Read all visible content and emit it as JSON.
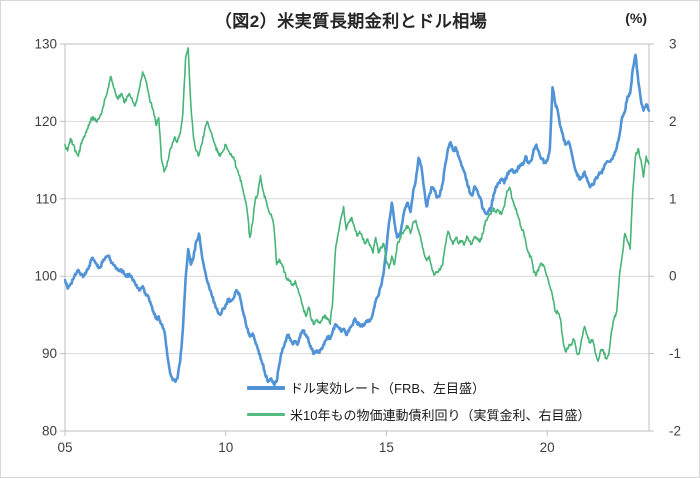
{
  "chart_data": {
    "type": "line",
    "title": "（図2）米実質長期金利とドル相場",
    "right_axis_unit_label": "(%)",
    "grid_on": true,
    "legend_position": "bottom-center-inside",
    "x_axis": {
      "tick_labels": [
        "05",
        "10",
        "15",
        "20"
      ],
      "tick_years": [
        2005,
        2010,
        2015,
        2020
      ],
      "range_years": [
        2005.0,
        2023.17
      ]
    },
    "left_axis": {
      "min": 80,
      "max": 130,
      "ticks": [
        130,
        120,
        110,
        100,
        90,
        80
      ],
      "tick_labels": [
        "130",
        "120",
        "110",
        "100",
        "90",
        "80"
      ]
    },
    "right_axis": {
      "min": -2,
      "max": 3,
      "ticks": [
        3,
        2,
        1,
        0,
        -1,
        -2
      ],
      "tick_labels": [
        "3",
        "2",
        "1",
        "0",
        "-1",
        "-2"
      ]
    },
    "grid_color": "#d9d9d9",
    "axis_color": "#bfbfbf",
    "label_color": "#404040",
    "series": [
      {
        "name": "ドル実効レート（FRB、左目盛）",
        "axis": "left",
        "color": "#5093d6",
        "line_width": 2.6,
        "start_year": 2005.0,
        "points_per_year": 12,
        "values": [
          99.5,
          98.4,
          99.0,
          99.6,
          100.2,
          100.8,
          100.3,
          100.0,
          100.6,
          101.3,
          102.3,
          102.0,
          101.3,
          101.1,
          101.8,
          102.3,
          102.6,
          102.1,
          101.5,
          101.0,
          100.7,
          100.9,
          100.3,
          100.0,
          100.3,
          99.8,
          99.2,
          98.5,
          98.2,
          98.7,
          97.8,
          97.5,
          96.5,
          95.4,
          94.5,
          94.8,
          93.8,
          93.0,
          90.5,
          88.0,
          86.9,
          86.5,
          86.8,
          89.0,
          93.0,
          99.5,
          103.5,
          101.5,
          102.5,
          104.5,
          105.5,
          103.0,
          101.0,
          99.5,
          98.3,
          97.3,
          96.4,
          95.4,
          95.0,
          95.8,
          96.3,
          97.0,
          96.8,
          97.2,
          98.2,
          97.8,
          96.2,
          94.8,
          93.3,
          92.2,
          92.6,
          91.6,
          90.6,
          89.4,
          88.6,
          87.0,
          86.4,
          86.8,
          86.0,
          86.4,
          88.6,
          90.2,
          91.2,
          92.4,
          92.0,
          91.2,
          91.6,
          91.3,
          92.6,
          93.0,
          92.4,
          91.5,
          90.6,
          90.0,
          90.4,
          90.1,
          90.6,
          91.6,
          92.2,
          91.9,
          92.9,
          93.8,
          93.4,
          92.9,
          93.2,
          92.4,
          92.9,
          93.6,
          94.4,
          94.0,
          93.8,
          93.5,
          93.9,
          94.1,
          94.4,
          95.3,
          96.8,
          97.5,
          98.8,
          100.5,
          103.5,
          107.0,
          109.5,
          107.0,
          105.0,
          105.5,
          107.0,
          108.8,
          109.5,
          108.3,
          111.0,
          112.5,
          115.3,
          114.3,
          111.5,
          109.0,
          110.5,
          111.5,
          111.0,
          110.2,
          110.6,
          112.0,
          114.5,
          116.5,
          117.3,
          116.2,
          116.6,
          115.5,
          114.3,
          113.5,
          112.4,
          111.0,
          110.4,
          111.6,
          111.0,
          110.2,
          108.7,
          108.1,
          108.4,
          108.7,
          110.5,
          111.6,
          112.1,
          112.6,
          112.0,
          113.0,
          113.6,
          113.8,
          113.4,
          113.9,
          114.4,
          114.4,
          115.5,
          114.7,
          114.9,
          116.4,
          117.0,
          116.0,
          115.2,
          114.7,
          114.9,
          116.4,
          124.4,
          122.4,
          121.3,
          119.3,
          118.0,
          117.0,
          117.4,
          116.2,
          114.5,
          113.4,
          112.5,
          112.8,
          113.5,
          112.4,
          111.5,
          111.8,
          112.5,
          113.0,
          113.3,
          113.8,
          114.6,
          114.8,
          115.1,
          115.6,
          116.6,
          118.2,
          120.6,
          121.2,
          123.2,
          123.6,
          126.8,
          128.6,
          125.3,
          122.8,
          121.4,
          122.2,
          121.4
        ]
      },
      {
        "name": "米10年もの物価連動債利回り（実質金利、右目盛）",
        "axis": "right",
        "color": "#47b478",
        "line_width": 1.6,
        "start_year": 2005.0,
        "points_per_year": 12,
        "values": [
          1.7,
          1.62,
          1.78,
          1.7,
          1.62,
          1.55,
          1.72,
          1.8,
          1.86,
          1.95,
          2.05,
          2.02,
          2.0,
          2.06,
          2.16,
          2.3,
          2.42,
          2.58,
          2.46,
          2.35,
          2.3,
          2.36,
          2.25,
          2.3,
          2.36,
          2.3,
          2.2,
          2.3,
          2.46,
          2.64,
          2.55,
          2.4,
          2.24,
          2.14,
          1.95,
          2.05,
          1.52,
          1.35,
          1.42,
          1.6,
          1.7,
          1.8,
          1.74,
          1.84,
          2.1,
          2.8,
          2.95,
          2.2,
          1.78,
          1.62,
          1.56,
          1.7,
          1.86,
          2.0,
          1.9,
          1.8,
          1.7,
          1.6,
          1.55,
          1.62,
          1.7,
          1.62,
          1.58,
          1.54,
          1.4,
          1.3,
          1.18,
          1.04,
          0.85,
          0.5,
          0.68,
          0.98,
          1.06,
          1.3,
          1.1,
          0.98,
          0.85,
          0.8,
          0.64,
          0.15,
          0.22,
          0.15,
          0.05,
          -0.05,
          -0.05,
          -0.12,
          -0.06,
          -0.16,
          -0.28,
          -0.42,
          -0.52,
          -0.4,
          -0.56,
          -0.62,
          -0.56,
          -0.6,
          -0.56,
          -0.5,
          -0.56,
          -0.62,
          -0.3,
          0.35,
          0.55,
          0.75,
          0.9,
          0.6,
          0.7,
          0.76,
          0.65,
          0.52,
          0.58,
          0.5,
          0.42,
          0.48,
          0.4,
          0.3,
          0.5,
          0.3,
          0.38,
          0.42,
          0.2,
          0.1,
          0.26,
          0.15,
          0.4,
          0.48,
          0.56,
          0.6,
          0.65,
          0.55,
          0.7,
          0.72,
          0.6,
          0.45,
          0.3,
          0.2,
          0.26,
          0.1,
          0.02,
          0.06,
          0.08,
          0.15,
          0.4,
          0.58,
          0.48,
          0.42,
          0.5,
          0.42,
          0.46,
          0.4,
          0.52,
          0.45,
          0.42,
          0.5,
          0.48,
          0.45,
          0.55,
          0.72,
          0.76,
          0.8,
          0.88,
          0.82,
          0.85,
          0.8,
          0.9,
          1.1,
          1.15,
          1.0,
          0.9,
          0.8,
          0.65,
          0.6,
          0.45,
          0.3,
          0.25,
          0.05,
          0.02,
          0.12,
          0.16,
          0.12,
          0.0,
          -0.12,
          -0.25,
          -0.45,
          -0.47,
          -0.55,
          -0.85,
          -0.98,
          -0.92,
          -0.88,
          -0.82,
          -0.98,
          -1.0,
          -0.8,
          -0.65,
          -0.76,
          -0.86,
          -0.82,
          -1.0,
          -1.1,
          -0.95,
          -0.96,
          -1.06,
          -1.02,
          -0.72,
          -0.55,
          -0.45,
          0.0,
          0.25,
          0.55,
          0.45,
          0.35,
          1.1,
          1.55,
          1.65,
          1.5,
          1.28,
          1.55,
          1.45
        ]
      }
    ]
  }
}
